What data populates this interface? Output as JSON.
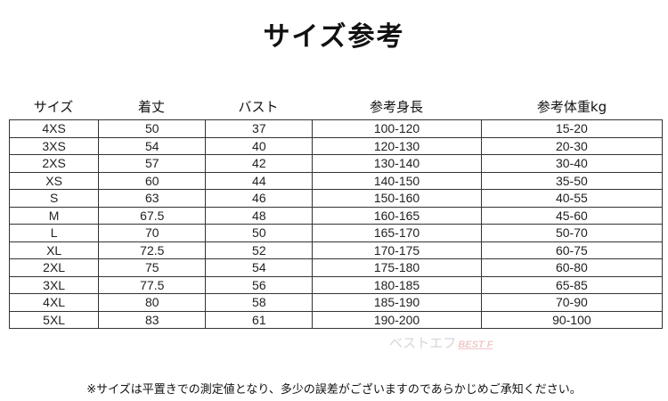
{
  "title": "サイズ参考",
  "headers": [
    "サイズ",
    "着丈",
    "バスト",
    "参考身長",
    "参考体重kg"
  ],
  "rows": [
    [
      "4XS",
      "50",
      "37",
      "100-120",
      "15-20"
    ],
    [
      "3XS",
      "54",
      "40",
      "120-130",
      "20-30"
    ],
    [
      "2XS",
      "57",
      "42",
      "130-140",
      "30-40"
    ],
    [
      "XS",
      "60",
      "44",
      "140-150",
      "35-50"
    ],
    [
      "S",
      "63",
      "46",
      "150-160",
      "40-55"
    ],
    [
      "M",
      "67.5",
      "48",
      "160-165",
      "45-60"
    ],
    [
      "L",
      "70",
      "50",
      "165-170",
      "50-70"
    ],
    [
      "XL",
      "72.5",
      "52",
      "170-175",
      "60-75"
    ],
    [
      "2XL",
      "75",
      "54",
      "175-180",
      "60-80"
    ],
    [
      "3XL",
      "77.5",
      "56",
      "180-185",
      "65-85"
    ],
    [
      "4XL",
      "80",
      "58",
      "185-190",
      "70-90"
    ],
    [
      "5XL",
      "83",
      "61",
      "190-200",
      "90-100"
    ]
  ],
  "watermark": {
    "jp": "ベストエフ",
    "en": "BEST F"
  },
  "note": "※サイズは平置きでの測定値となり、多少の誤差がございますのであらかじめご承知ください。"
}
